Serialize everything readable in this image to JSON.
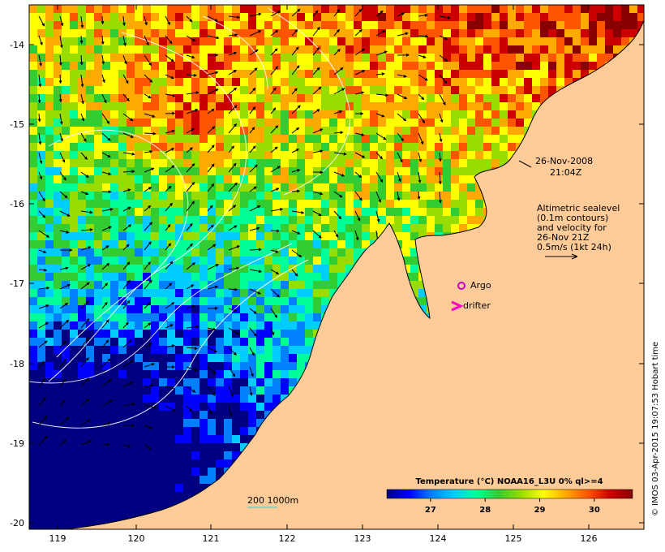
{
  "map": {
    "lon_ticks": [
      "119",
      "120",
      "121",
      "122",
      "123",
      "124",
      "125",
      "126"
    ],
    "lat_ticks": [
      "-14",
      "-15",
      "-16",
      "-17",
      "-18",
      "-19",
      "-20"
    ],
    "lon_range": [
      118.62,
      126.72
    ],
    "lat_range": [
      -13.62,
      -20.12
    ],
    "land_color": "#ffcc99",
    "contour_color": "#ffffff"
  },
  "annotations": {
    "date": "26-Nov-2008",
    "time": "21:04Z",
    "altimetry_lines": [
      "Altimetric sealevel",
      "(0.1m contours)",
      "and velocity for",
      "26-Nov 21Z",
      "0.5m/s (1kt 24h)"
    ],
    "argo_label": "Argo",
    "drifter_label": "drifter",
    "argo_color": "#cc00cc",
    "drifter_color": "#ff00cc",
    "scale_label": "200  1000m",
    "scale_color": "#33cccc"
  },
  "colorbar": {
    "title": "Temperature (°C) NOAA16_L3U 0% ql>=4",
    "ticks": [
      "27",
      "28",
      "29",
      "30"
    ],
    "tick_values": [
      27,
      28,
      29,
      30
    ],
    "range": [
      26.2,
      30.7
    ],
    "colors": [
      "#000080",
      "#0000ff",
      "#0080ff",
      "#00ccff",
      "#00ff99",
      "#33cc33",
      "#99dd00",
      "#ffff00",
      "#ffaa00",
      "#ff5500",
      "#cc0000",
      "#880000"
    ]
  },
  "credit": "© IMOS 03-Apr-2015 19:07:53 Hobart time"
}
